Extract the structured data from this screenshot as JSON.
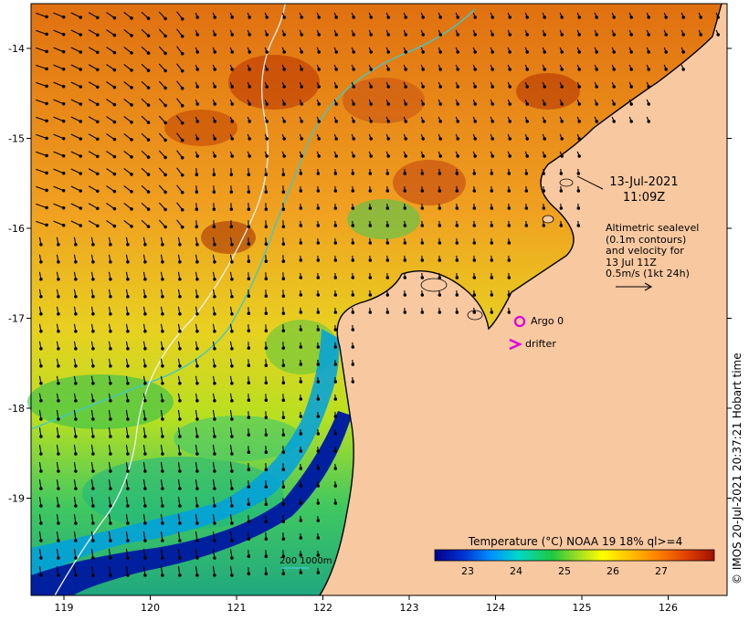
{
  "map": {
    "region": "Kimberley coast, north-western Australia",
    "axes": {
      "x_ticks": [
        "119",
        "120",
        "121",
        "122",
        "123",
        "124",
        "125",
        "126"
      ],
      "y_ticks": [
        "-14",
        "-15",
        "-16",
        "-17",
        "-18",
        "-19"
      ]
    },
    "colors": {
      "land": "#f8c9a0",
      "coastline": "#000000",
      "shelf_contour_200": "#40c8c8",
      "deep_contour_1000": "#f0f0f0",
      "current_arrows": "#000000",
      "argo_marker": "#e000e0",
      "drifter_marker": "#e000e0"
    }
  },
  "annotation": {
    "date": "13-Jul-2021",
    "time": "11:09Z",
    "legend_lines": [
      "Altimetric sealevel",
      "(0.1m contours)",
      "and velocity for",
      "13 Jul 11Z",
      "0.5m/s (1kt 24h)"
    ]
  },
  "markers": {
    "argo_label": "Argo 0",
    "drifter_label": "drifter"
  },
  "depth_legend": {
    "label": "200  1000m"
  },
  "colorbar": {
    "title": "Temperature (°C) NOAA 19 18% ql>=4",
    "tick_labels": [
      "23",
      "24",
      "25",
      "26",
      "27"
    ],
    "stops": [
      "#00008b",
      "#0030d0",
      "#0090ff",
      "#00d8c8",
      "#20c840",
      "#a8e020",
      "#ffff00",
      "#ffc000",
      "#ff8000",
      "#e04000",
      "#a01000"
    ]
  },
  "credit": "© IMOS 20-Jul-2021 20:37:21 Hobart time"
}
